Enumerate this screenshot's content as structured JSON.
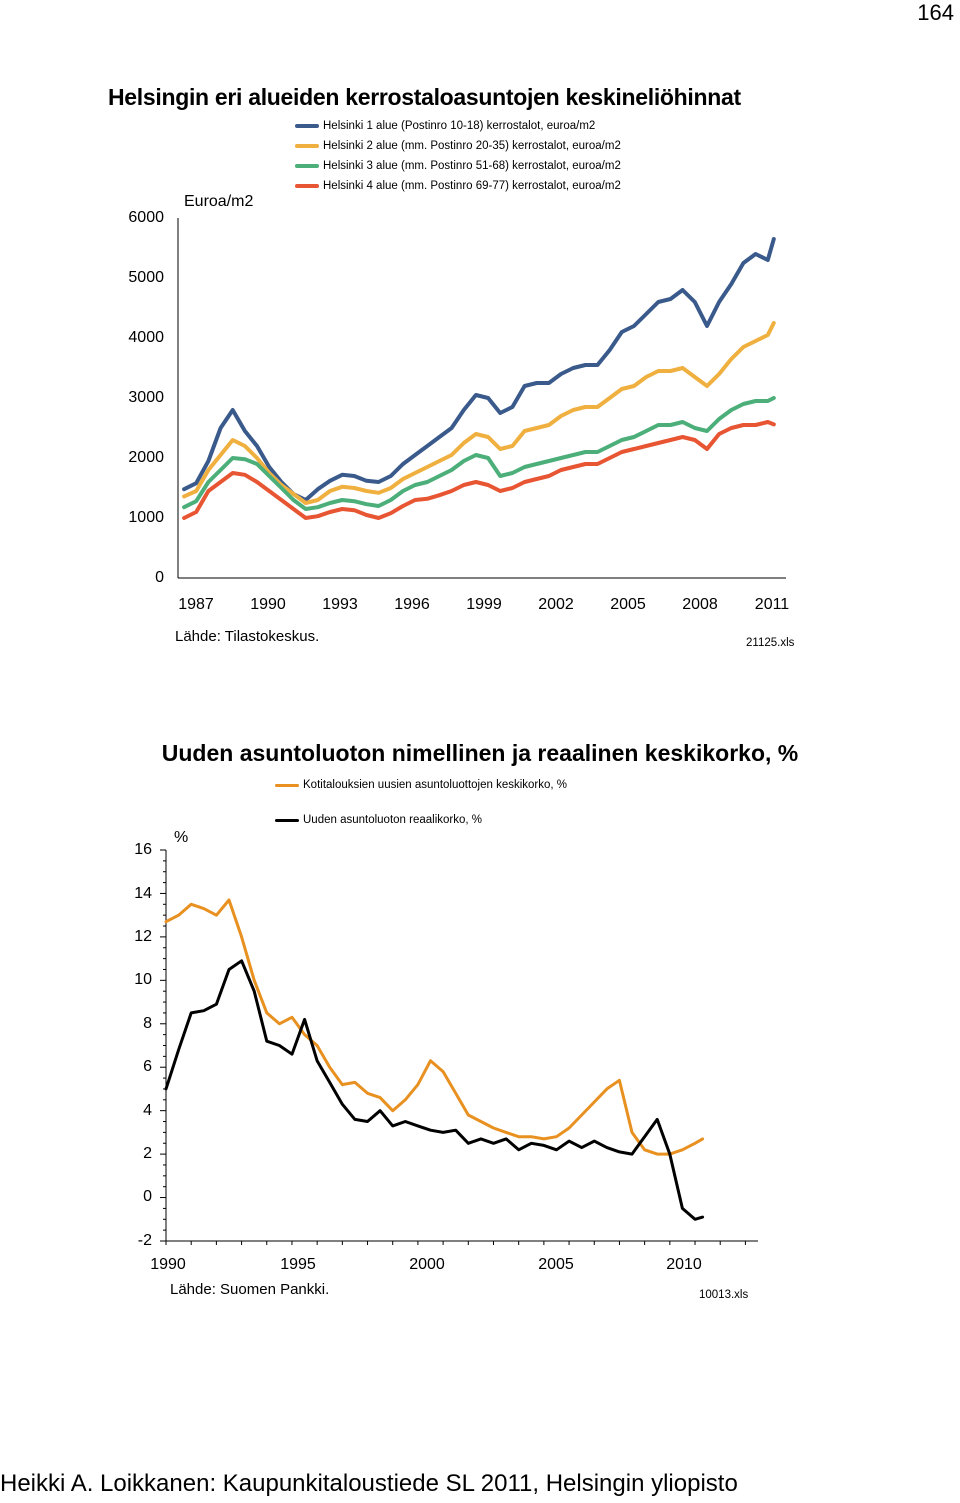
{
  "page_number": "164",
  "footer": "Heikki A. Loikkanen: Kaupunkitaloustiede SL 2011, Helsingin yliopisto",
  "chart_data": [
    {
      "type": "line",
      "title": "Helsingin eri alueiden kerrostaloasuntojen keskineliöhinnat",
      "ylabel": "Euroa/m2",
      "ylim": [
        0,
        6000
      ],
      "yticks": [
        "0",
        "1000",
        "2000",
        "3000",
        "4000",
        "5000",
        "6000"
      ],
      "xlim": [
        1986.75,
        2011.75
      ],
      "xticks": [
        "1987",
        "1990",
        "1993",
        "1996",
        "1999",
        "2002",
        "2005",
        "2008",
        "2011"
      ],
      "source": "Lähde: Tilastokeskus.",
      "file": "21125.xls",
      "x": [
        1987.0,
        1987.5,
        1988.0,
        1988.5,
        1989.0,
        1989.5,
        1990.0,
        1990.5,
        1991.0,
        1991.5,
        1992.0,
        1992.5,
        1993.0,
        1993.5,
        1994.0,
        1994.5,
        1995.0,
        1995.5,
        1996.0,
        1996.5,
        1997.0,
        1997.5,
        1998.0,
        1998.5,
        1999.0,
        1999.5,
        2000.0,
        2000.5,
        2001.0,
        2001.5,
        2002.0,
        2002.5,
        2003.0,
        2003.5,
        2004.0,
        2004.5,
        2005.0,
        2005.5,
        2006.0,
        2006.5,
        2007.0,
        2007.5,
        2008.0,
        2008.5,
        2009.0,
        2009.5,
        2010.0,
        2010.5,
        2011.0,
        2011.25
      ],
      "series": [
        {
          "name": "Helsinki 1 alue (Postinro 10-18) kerrostalot, euroa/m2",
          "color": "#3a5a8c",
          "values": [
            1480,
            1580,
            1950,
            2500,
            2800,
            2450,
            2200,
            1850,
            1600,
            1400,
            1300,
            1480,
            1620,
            1720,
            1700,
            1620,
            1600,
            1700,
            1900,
            2050,
            2200,
            2350,
            2500,
            2800,
            3050,
            3000,
            2750,
            2850,
            3200,
            3250,
            3250,
            3400,
            3500,
            3550,
            3550,
            3800,
            4100,
            4200,
            4400,
            4600,
            4650,
            4800,
            4600,
            4200,
            4600,
            4900,
            5250,
            5400,
            5300,
            5650
          ]
        },
        {
          "name": "Helsinki 2 alue (mm. Postinro 20-35) kerrostalot, euroa/m2",
          "color": "#f0b040",
          "values": [
            1360,
            1450,
            1800,
            2050,
            2300,
            2200,
            2000,
            1750,
            1550,
            1400,
            1250,
            1300,
            1450,
            1520,
            1500,
            1450,
            1420,
            1500,
            1650,
            1750,
            1850,
            1950,
            2050,
            2250,
            2400,
            2350,
            2150,
            2200,
            2450,
            2500,
            2550,
            2700,
            2800,
            2850,
            2850,
            3000,
            3150,
            3200,
            3350,
            3450,
            3450,
            3500,
            3350,
            3200,
            3400,
            3650,
            3850,
            3950,
            4050,
            4250
          ]
        },
        {
          "name": "Helsinki 3 alue (mm. Postinro 51-68) kerrostalot, euroa/m2",
          "color": "#4caf7a",
          "values": [
            1180,
            1280,
            1600,
            1800,
            2000,
            1980,
            1900,
            1700,
            1500,
            1300,
            1150,
            1180,
            1250,
            1300,
            1280,
            1230,
            1200,
            1300,
            1450,
            1550,
            1600,
            1700,
            1800,
            1950,
            2050,
            2000,
            1700,
            1750,
            1850,
            1900,
            1950,
            2000,
            2050,
            2100,
            2100,
            2200,
            2300,
            2350,
            2450,
            2550,
            2550,
            2600,
            2500,
            2450,
            2650,
            2800,
            2900,
            2950,
            2950,
            3000
          ]
        },
        {
          "name": "Helsinki 4 alue (mm. Postinro 69-77) kerrostalot, euroa/m2",
          "color": "#e85533",
          "values": [
            1000,
            1100,
            1450,
            1600,
            1750,
            1720,
            1600,
            1450,
            1300,
            1150,
            1000,
            1030,
            1100,
            1150,
            1130,
            1050,
            1000,
            1080,
            1200,
            1300,
            1320,
            1380,
            1450,
            1550,
            1600,
            1550,
            1450,
            1500,
            1600,
            1650,
            1700,
            1800,
            1850,
            1900,
            1900,
            2000,
            2100,
            2150,
            2200,
            2250,
            2300,
            2350,
            2300,
            2150,
            2400,
            2500,
            2550,
            2550,
            2600,
            2560
          ]
        }
      ]
    },
    {
      "type": "line",
      "title": "Uuden asuntoluoton nimellinen ja reaalinen keskikorko, %",
      "ylabel": "%",
      "ylim": [
        -2,
        16
      ],
      "yticks": [
        "-2",
        "0",
        "2",
        "4",
        "6",
        "8",
        "10",
        "12",
        "14",
        "16"
      ],
      "xlim": [
        1990,
        2013.5
      ],
      "xticks": [
        "1990",
        "1995",
        "2000",
        "2005",
        "2010"
      ],
      "source": "Lähde: Suomen Pankki.",
      "file": "10013.xls",
      "x": [
        1990.0,
        1990.5,
        1991.0,
        1991.5,
        1992.0,
        1992.5,
        1993.0,
        1993.5,
        1994.0,
        1994.5,
        1995.0,
        1995.5,
        1996.0,
        1996.5,
        1997.0,
        1997.5,
        1998.0,
        1998.5,
        1999.0,
        1999.5,
        2000.0,
        2000.5,
        2001.0,
        2001.5,
        2002.0,
        2002.5,
        2003.0,
        2003.5,
        2004.0,
        2004.5,
        2005.0,
        2005.5,
        2006.0,
        2006.5,
        2007.0,
        2007.5,
        2008.0,
        2008.5,
        2009.0,
        2009.5,
        2010.0,
        2010.5,
        2011.0,
        2011.3
      ],
      "series": [
        {
          "name": "Kotitalouksien uusien asuntoluottojen keskikorko, %",
          "color": "#e89020",
          "values": [
            12.7,
            13.0,
            13.5,
            13.3,
            13.0,
            13.7,
            12.0,
            10.0,
            8.5,
            8.0,
            8.3,
            7.5,
            7.0,
            6.0,
            5.2,
            5.3,
            4.8,
            4.6,
            4.0,
            4.5,
            5.2,
            6.3,
            5.8,
            4.8,
            3.8,
            3.5,
            3.2,
            3.0,
            2.8,
            2.8,
            2.7,
            2.8,
            3.2,
            3.8,
            4.4,
            5.0,
            5.4,
            3.0,
            2.2,
            2.0,
            2.0,
            2.2,
            2.5,
            2.7
          ]
        },
        {
          "name": "Uuden asuntoluoton reaalikorko, %",
          "color": "#000000",
          "values": [
            5.0,
            6.8,
            8.5,
            8.6,
            8.9,
            10.5,
            10.9,
            9.5,
            7.2,
            7.0,
            6.6,
            8.2,
            6.3,
            5.3,
            4.3,
            3.6,
            3.5,
            4.0,
            3.3,
            3.5,
            3.3,
            3.1,
            3.0,
            3.1,
            2.5,
            2.7,
            2.5,
            2.7,
            2.2,
            2.5,
            2.4,
            2.2,
            2.6,
            2.3,
            2.6,
            2.3,
            2.1,
            2.0,
            2.8,
            3.6,
            2.0,
            -0.5,
            -1.0,
            -0.9
          ]
        }
      ]
    }
  ]
}
